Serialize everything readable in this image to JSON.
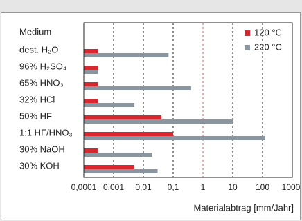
{
  "chart_data": {
    "type": "barh",
    "header": "Medium",
    "xlabel": "Materialabtrag [mm/Jahr]",
    "xscale": "log",
    "categories": [
      "dest. H₂O",
      "96% H₂SO₄",
      "65% HNO₃",
      "32% HCl",
      "50% HF",
      "1:1 HF/HNO₃",
      "30% NaOH",
      "30% KOH"
    ],
    "series": [
      {
        "name": "120 °C",
        "color": "#d7282f",
        "values": [
          0.0003,
          0.0003,
          0.0003,
          0.0003,
          0.04,
          0.1,
          0.0003,
          0.005
        ]
      },
      {
        "name": "220 °C",
        "color": "#8a959f",
        "values": [
          0.07,
          0.0003,
          0.4,
          0.005,
          10,
          120,
          0.02,
          0.03
        ]
      }
    ],
    "xlim": [
      0.0001,
      1000
    ],
    "xticks": [
      {
        "value": 0.0001,
        "label": "0,0001"
      },
      {
        "value": 0.001,
        "label": "0,001"
      },
      {
        "value": 0.01,
        "label": "0,01"
      },
      {
        "value": 0.1,
        "label": "0,1"
      },
      1,
      10,
      100,
      1000
    ],
    "grid": true,
    "reference_line": {
      "value": 1,
      "color": "#e05050"
    },
    "legend": "upper right"
  }
}
